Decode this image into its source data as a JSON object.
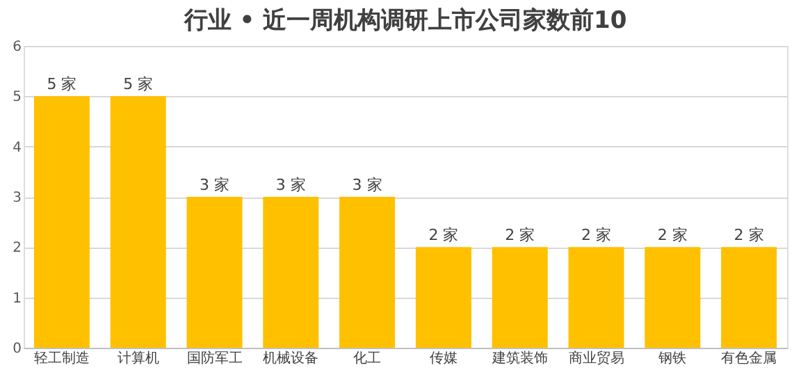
{
  "chart_data": {
    "type": "bar",
    "title": "行业 • 近一周机构调研上市公司家数前10",
    "categories": [
      "轻工制造",
      "计算机",
      "国防军工",
      "机械设备",
      "化工",
      "传媒",
      "建筑装饰",
      "商业贸易",
      "钢铁",
      "有色金属"
    ],
    "values": [
      5,
      5,
      3,
      3,
      3,
      2,
      2,
      2,
      2,
      2
    ],
    "value_labels": [
      "5 家",
      "5 家",
      "3 家",
      "3 家",
      "3 家",
      "2 家",
      "2 家",
      "2 家",
      "2 家",
      "2 家"
    ],
    "color": "#ffc000",
    "ylim": [
      0,
      6
    ],
    "yticks": [
      0,
      1,
      2,
      3,
      4,
      5,
      6
    ],
    "grid": "y"
  }
}
